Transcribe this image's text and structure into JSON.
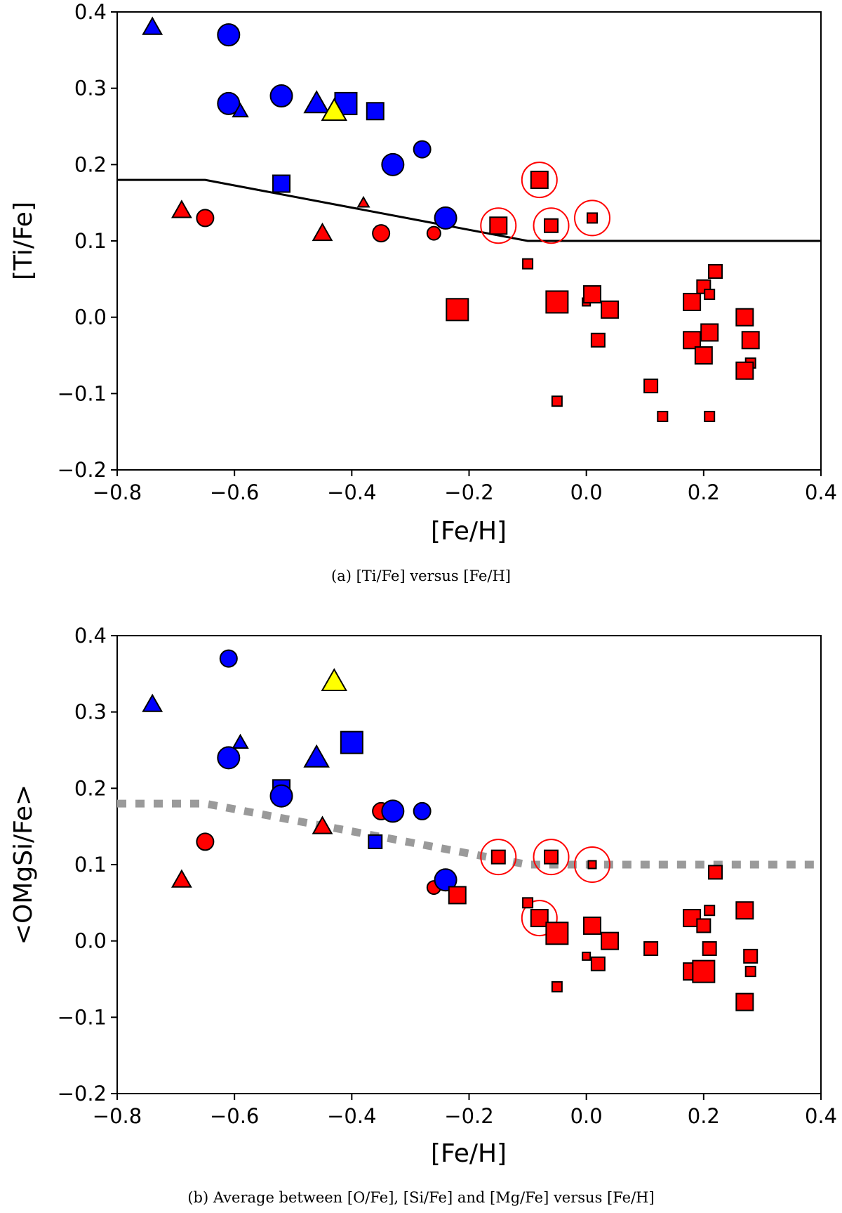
{
  "chart_data": [
    {
      "type": "scatter",
      "panel": "a",
      "caption": "(a)  [Ti/Fe] versus [Fe/H]",
      "xlabel": "[Fe/H]",
      "ylabel": "[Ti/Fe]",
      "xlim": [
        -0.8,
        0.4
      ],
      "ylim": [
        -0.2,
        0.4
      ],
      "xticks": [
        -0.8,
        -0.6,
        -0.4,
        -0.2,
        0.0,
        0.2,
        0.4
      ],
      "xtick_labels": [
        "−0.8",
        "−0.6",
        "−0.4",
        "−0.2",
        "0.0",
        "0.2",
        "0.4"
      ],
      "yticks": [
        -0.2,
        -0.1,
        0.0,
        0.1,
        0.2,
        0.3,
        0.4
      ],
      "ytick_labels": [
        "−0.2",
        "−0.1",
        "0.0",
        "0.1",
        "0.2",
        "0.3",
        "0.4"
      ],
      "colors": {
        "blue": "#0000ff",
        "red": "#ff0000",
        "yellow": "#ffff00",
        "line": "#000000",
        "ring": "#ff0000"
      },
      "reference_line": {
        "style": "solid",
        "x": [
          -0.8,
          -0.65,
          -0.1,
          0.4
        ],
        "y": [
          0.18,
          0.18,
          0.1,
          0.1
        ]
      },
      "points": [
        {
          "x": -0.74,
          "y": 0.38,
          "shape": "triangle",
          "color": "blue",
          "size": "m"
        },
        {
          "x": -0.61,
          "y": 0.37,
          "shape": "circle",
          "color": "blue",
          "size": "l"
        },
        {
          "x": -0.61,
          "y": 0.28,
          "shape": "circle",
          "color": "blue",
          "size": "l"
        },
        {
          "x": -0.59,
          "y": 0.27,
          "shape": "triangle",
          "color": "blue",
          "size": "s"
        },
        {
          "x": -0.52,
          "y": 0.29,
          "shape": "circle",
          "color": "blue",
          "size": "l"
        },
        {
          "x": -0.46,
          "y": 0.28,
          "shape": "triangle",
          "color": "blue",
          "size": "l"
        },
        {
          "x": -0.41,
          "y": 0.28,
          "shape": "square",
          "color": "blue",
          "size": "l"
        },
        {
          "x": -0.36,
          "y": 0.27,
          "shape": "square",
          "color": "blue",
          "size": "m"
        },
        {
          "x": -0.43,
          "y": 0.27,
          "shape": "triangle",
          "color": "yellow",
          "size": "l"
        },
        {
          "x": -0.33,
          "y": 0.2,
          "shape": "circle",
          "color": "blue",
          "size": "l"
        },
        {
          "x": -0.28,
          "y": 0.22,
          "shape": "circle",
          "color": "blue",
          "size": "m"
        },
        {
          "x": -0.52,
          "y": 0.175,
          "shape": "square",
          "color": "blue",
          "size": "m"
        },
        {
          "x": -0.24,
          "y": 0.13,
          "shape": "circle",
          "color": "blue",
          "size": "l"
        },
        {
          "x": -0.69,
          "y": 0.14,
          "shape": "triangle",
          "color": "red",
          "size": "m"
        },
        {
          "x": -0.65,
          "y": 0.13,
          "shape": "circle",
          "color": "red",
          "size": "m"
        },
        {
          "x": -0.45,
          "y": 0.11,
          "shape": "triangle",
          "color": "red",
          "size": "m"
        },
        {
          "x": -0.38,
          "y": 0.15,
          "shape": "triangle",
          "color": "red",
          "size": "xs"
        },
        {
          "x": -0.35,
          "y": 0.11,
          "shape": "circle",
          "color": "red",
          "size": "m"
        },
        {
          "x": -0.26,
          "y": 0.11,
          "shape": "circle",
          "color": "red",
          "size": "s"
        },
        {
          "x": -0.22,
          "y": 0.01,
          "shape": "square",
          "color": "red",
          "size": "l"
        },
        {
          "x": -0.15,
          "y": 0.12,
          "shape": "square",
          "color": "red",
          "size": "m",
          "ring": true
        },
        {
          "x": -0.08,
          "y": 0.18,
          "shape": "square",
          "color": "red",
          "size": "m",
          "ring": true
        },
        {
          "x": -0.06,
          "y": 0.12,
          "shape": "square",
          "color": "red",
          "size": "s",
          "ring": true
        },
        {
          "x": 0.01,
          "y": 0.13,
          "shape": "square",
          "color": "red",
          "size": "xs",
          "ring": true
        },
        {
          "x": -0.1,
          "y": 0.07,
          "shape": "square",
          "color": "red",
          "size": "xs"
        },
        {
          "x": -0.05,
          "y": -0.11,
          "shape": "square",
          "color": "red",
          "size": "xs"
        },
        {
          "x": -0.05,
          "y": 0.02,
          "shape": "square",
          "color": "red",
          "size": "l"
        },
        {
          "x": 0.0,
          "y": 0.02,
          "shape": "square",
          "color": "red",
          "size": "xxs"
        },
        {
          "x": 0.01,
          "y": 0.03,
          "shape": "square",
          "color": "red",
          "size": "m"
        },
        {
          "x": 0.02,
          "y": -0.03,
          "shape": "square",
          "color": "red",
          "size": "s"
        },
        {
          "x": 0.04,
          "y": 0.01,
          "shape": "square",
          "color": "red",
          "size": "m"
        },
        {
          "x": 0.11,
          "y": -0.09,
          "shape": "square",
          "color": "red",
          "size": "s"
        },
        {
          "x": 0.13,
          "y": -0.13,
          "shape": "square",
          "color": "red",
          "size": "xs"
        },
        {
          "x": 0.18,
          "y": 0.02,
          "shape": "square",
          "color": "red",
          "size": "m"
        },
        {
          "x": 0.18,
          "y": -0.03,
          "shape": "square",
          "color": "red",
          "size": "m"
        },
        {
          "x": 0.2,
          "y": 0.04,
          "shape": "square",
          "color": "red",
          "size": "s"
        },
        {
          "x": 0.21,
          "y": 0.03,
          "shape": "square",
          "color": "red",
          "size": "xs"
        },
        {
          "x": 0.22,
          "y": 0.06,
          "shape": "square",
          "color": "red",
          "size": "s"
        },
        {
          "x": 0.21,
          "y": -0.02,
          "shape": "square",
          "color": "red",
          "size": "m"
        },
        {
          "x": 0.2,
          "y": -0.05,
          "shape": "square",
          "color": "red",
          "size": "m"
        },
        {
          "x": 0.21,
          "y": -0.13,
          "shape": "square",
          "color": "red",
          "size": "xs"
        },
        {
          "x": 0.27,
          "y": 0.0,
          "shape": "square",
          "color": "red",
          "size": "m"
        },
        {
          "x": 0.28,
          "y": -0.03,
          "shape": "square",
          "color": "red",
          "size": "m"
        },
        {
          "x": 0.28,
          "y": -0.06,
          "shape": "square",
          "color": "red",
          "size": "xs"
        },
        {
          "x": 0.27,
          "y": -0.07,
          "shape": "square",
          "color": "red",
          "size": "m"
        }
      ]
    },
    {
      "type": "scatter",
      "panel": "b",
      "caption": "(b)  Average between [O/Fe], [Si/Fe] and [Mg/Fe] versus [Fe/H]",
      "xlabel": "[Fe/H]",
      "ylabel": "<OMgSi/Fe>",
      "xlim": [
        -0.8,
        0.4
      ],
      "ylim": [
        -0.2,
        0.4
      ],
      "xticks": [
        -0.8,
        -0.6,
        -0.4,
        -0.2,
        0.0,
        0.2,
        0.4
      ],
      "xtick_labels": [
        "−0.8",
        "−0.6",
        "−0.4",
        "−0.2",
        "0.0",
        "0.2",
        "0.4"
      ],
      "yticks": [
        -0.2,
        -0.1,
        0.0,
        0.1,
        0.2,
        0.3,
        0.4
      ],
      "ytick_labels": [
        "−0.2",
        "−0.1",
        "0.0",
        "0.1",
        "0.2",
        "0.3",
        "0.4"
      ],
      "colors": {
        "blue": "#0000ff",
        "red": "#ff0000",
        "yellow": "#ffff00",
        "line": "#9a9a9a",
        "ring": "#ff0000"
      },
      "reference_line": {
        "style": "dotted",
        "x": [
          -0.8,
          -0.65,
          -0.1,
          0.4
        ],
        "y": [
          0.18,
          0.18,
          0.1,
          0.1
        ]
      },
      "points": [
        {
          "x": -0.74,
          "y": 0.31,
          "shape": "triangle",
          "color": "blue",
          "size": "m"
        },
        {
          "x": -0.61,
          "y": 0.37,
          "shape": "circle",
          "color": "blue",
          "size": "m"
        },
        {
          "x": -0.59,
          "y": 0.26,
          "shape": "triangle",
          "color": "blue",
          "size": "s"
        },
        {
          "x": -0.61,
          "y": 0.24,
          "shape": "circle",
          "color": "blue",
          "size": "l"
        },
        {
          "x": -0.43,
          "y": 0.34,
          "shape": "triangle",
          "color": "yellow",
          "size": "l"
        },
        {
          "x": -0.4,
          "y": 0.26,
          "shape": "square",
          "color": "blue",
          "size": "l"
        },
        {
          "x": -0.46,
          "y": 0.24,
          "shape": "triangle",
          "color": "blue",
          "size": "l"
        },
        {
          "x": -0.52,
          "y": 0.2,
          "shape": "square",
          "color": "blue",
          "size": "m"
        },
        {
          "x": -0.52,
          "y": 0.19,
          "shape": "circle",
          "color": "blue",
          "size": "l"
        },
        {
          "x": -0.65,
          "y": 0.13,
          "shape": "circle",
          "color": "red",
          "size": "m"
        },
        {
          "x": -0.69,
          "y": 0.08,
          "shape": "triangle",
          "color": "red",
          "size": "m"
        },
        {
          "x": -0.45,
          "y": 0.15,
          "shape": "triangle",
          "color": "red",
          "size": "m"
        },
        {
          "x": -0.35,
          "y": 0.17,
          "shape": "circle",
          "color": "red",
          "size": "m"
        },
        {
          "x": -0.36,
          "y": 0.13,
          "shape": "square",
          "color": "blue",
          "size": "s"
        },
        {
          "x": -0.33,
          "y": 0.17,
          "shape": "circle",
          "color": "blue",
          "size": "l"
        },
        {
          "x": -0.28,
          "y": 0.17,
          "shape": "circle",
          "color": "blue",
          "size": "m"
        },
        {
          "x": -0.26,
          "y": 0.07,
          "shape": "circle",
          "color": "red",
          "size": "s"
        },
        {
          "x": -0.24,
          "y": 0.08,
          "shape": "circle",
          "color": "blue",
          "size": "l"
        },
        {
          "x": -0.22,
          "y": 0.06,
          "shape": "square",
          "color": "red",
          "size": "m"
        },
        {
          "x": -0.15,
          "y": 0.11,
          "shape": "square",
          "color": "red",
          "size": "s",
          "ring": true
        },
        {
          "x": -0.06,
          "y": 0.11,
          "shape": "square",
          "color": "red",
          "size": "s",
          "ring": true
        },
        {
          "x": 0.01,
          "y": 0.1,
          "shape": "square",
          "color": "red",
          "size": "xxs",
          "ring": true
        },
        {
          "x": -0.08,
          "y": 0.03,
          "shape": "square",
          "color": "red",
          "size": "m",
          "ring": true
        },
        {
          "x": -0.1,
          "y": 0.05,
          "shape": "square",
          "color": "red",
          "size": "xs"
        },
        {
          "x": -0.05,
          "y": 0.01,
          "shape": "square",
          "color": "red",
          "size": "l"
        },
        {
          "x": -0.05,
          "y": -0.06,
          "shape": "square",
          "color": "red",
          "size": "xs"
        },
        {
          "x": 0.0,
          "y": -0.02,
          "shape": "square",
          "color": "red",
          "size": "xxs"
        },
        {
          "x": 0.01,
          "y": 0.02,
          "shape": "square",
          "color": "red",
          "size": "m"
        },
        {
          "x": 0.02,
          "y": -0.03,
          "shape": "square",
          "color": "red",
          "size": "s"
        },
        {
          "x": 0.04,
          "y": 0.0,
          "shape": "square",
          "color": "red",
          "size": "m"
        },
        {
          "x": 0.11,
          "y": -0.01,
          "shape": "square",
          "color": "red",
          "size": "s"
        },
        {
          "x": 0.18,
          "y": 0.03,
          "shape": "square",
          "color": "red",
          "size": "m"
        },
        {
          "x": 0.18,
          "y": -0.04,
          "shape": "square",
          "color": "red",
          "size": "m"
        },
        {
          "x": 0.2,
          "y": 0.02,
          "shape": "square",
          "color": "red",
          "size": "s"
        },
        {
          "x": 0.21,
          "y": 0.04,
          "shape": "square",
          "color": "red",
          "size": "xs"
        },
        {
          "x": 0.21,
          "y": -0.01,
          "shape": "square",
          "color": "red",
          "size": "s"
        },
        {
          "x": 0.2,
          "y": -0.04,
          "shape": "square",
          "color": "red",
          "size": "l"
        },
        {
          "x": 0.22,
          "y": 0.09,
          "shape": "square",
          "color": "red",
          "size": "s"
        },
        {
          "x": 0.27,
          "y": 0.04,
          "shape": "square",
          "color": "red",
          "size": "m"
        },
        {
          "x": 0.28,
          "y": -0.02,
          "shape": "square",
          "color": "red",
          "size": "s"
        },
        {
          "x": 0.28,
          "y": -0.04,
          "shape": "square",
          "color": "red",
          "size": "xs"
        },
        {
          "x": 0.27,
          "y": -0.08,
          "shape": "square",
          "color": "red",
          "size": "m"
        }
      ]
    }
  ]
}
